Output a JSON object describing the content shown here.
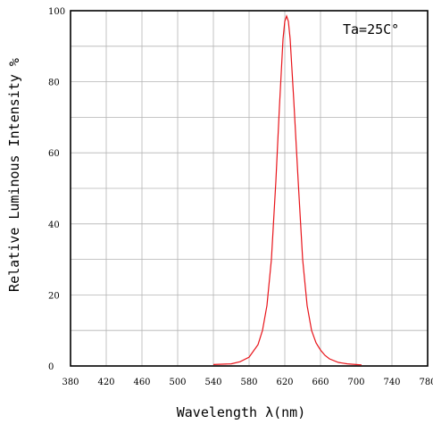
{
  "chart_data": {
    "type": "line",
    "title": "",
    "xlabel": "Wavelength λ(nm)",
    "ylabel": "Relative Luminous Intensity %",
    "annotation": "Ta=25C°",
    "xlim": [
      380,
      780
    ],
    "ylim": [
      0,
      100
    ],
    "x_ticks": [
      "380",
      "420",
      "460",
      "500",
      "540",
      "580",
      "620",
      "660",
      "700",
      "740",
      "780"
    ],
    "y_ticks": [
      "0",
      "20",
      "40",
      "60",
      "80",
      "100"
    ],
    "grid": true,
    "line_color": "#e8141a",
    "series": [
      {
        "x": [
          540,
          560,
          570,
          580,
          590,
          595,
          600,
          605,
          610,
          614,
          618,
          620,
          622,
          624,
          626,
          630,
          635,
          640,
          645,
          650,
          655,
          660,
          665,
          670,
          680,
          690,
          700,
          706
        ],
        "values": [
          0.4,
          0.6,
          1.2,
          2.5,
          6,
          10,
          17,
          30,
          52,
          73,
          92,
          97,
          98.5,
          97,
          92,
          75,
          52,
          30,
          17,
          10,
          6.5,
          4.5,
          3,
          2,
          1,
          0.6,
          0.4,
          0.3
        ]
      }
    ]
  }
}
